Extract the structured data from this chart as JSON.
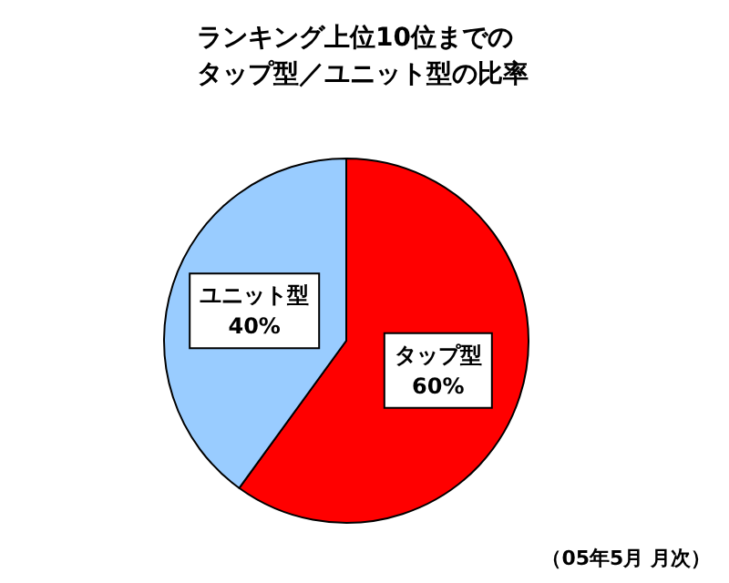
{
  "chart_data": {
    "type": "pie",
    "title": "ランキング上位10位までのタップ型／ユニット型の比率",
    "categories": [
      "タップ型",
      "ユニット型"
    ],
    "values": [
      60,
      40
    ],
    "colors": [
      "#ff0000",
      "#99ccff"
    ],
    "value_labels": [
      "60%",
      "40%"
    ],
    "annotations": [
      "（05年5月 月次）"
    ],
    "legend": false
  }
}
